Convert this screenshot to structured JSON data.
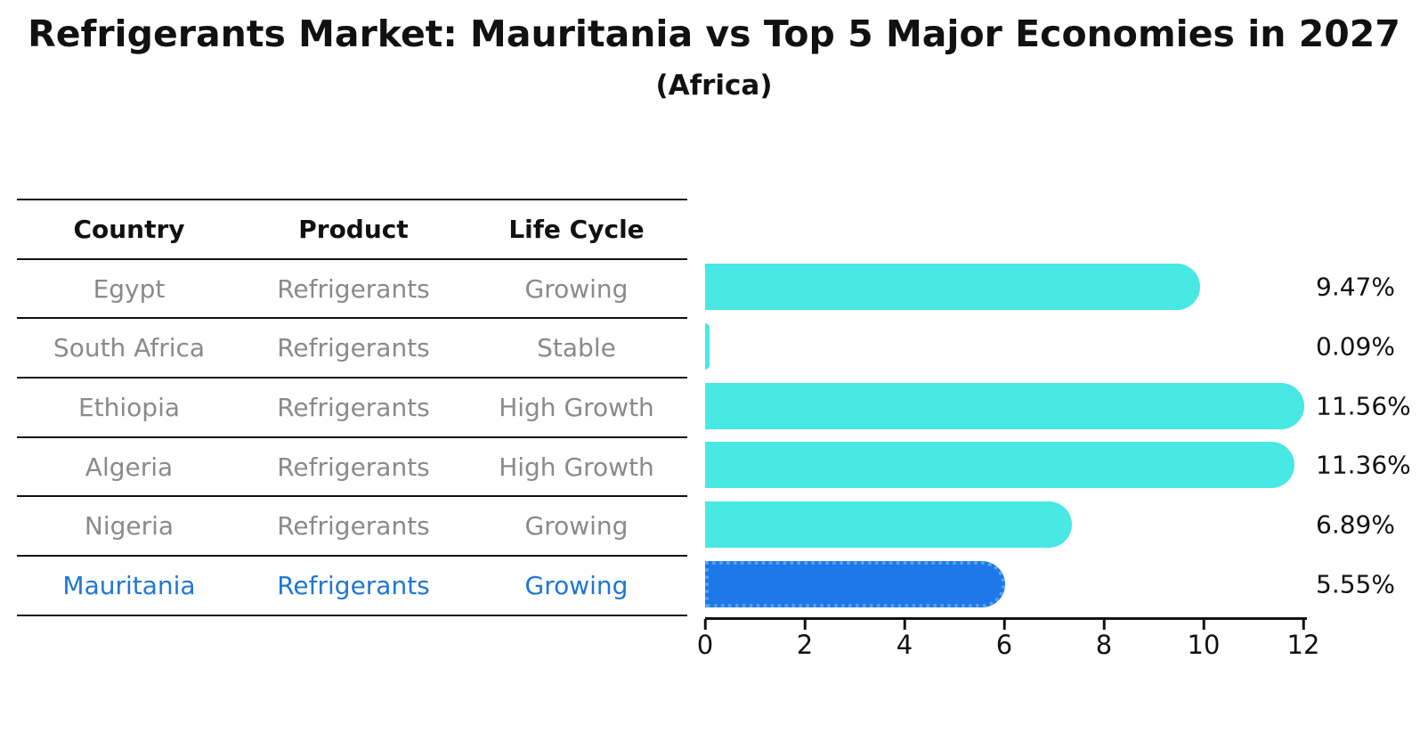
{
  "title": "Refrigerants Market: Mauritania vs Top 5 Major Economies in 2027",
  "subtitle": "(Africa)",
  "table": {
    "headers": [
      "Country",
      "Product",
      "Life Cycle"
    ],
    "rows": [
      {
        "country": "Egypt",
        "product": "Refrigerants",
        "life_cycle": "Growing",
        "highlight": false
      },
      {
        "country": "South Africa",
        "product": "Refrigerants",
        "life_cycle": "Stable",
        "highlight": false
      },
      {
        "country": "Ethiopia",
        "product": "Refrigerants",
        "life_cycle": "High Growth",
        "highlight": false
      },
      {
        "country": "Algeria",
        "product": "Refrigerants",
        "life_cycle": "High Growth",
        "highlight": false
      },
      {
        "country": "Nigeria",
        "product": "Refrigerants",
        "life_cycle": "Growing",
        "highlight": false
      },
      {
        "country": "Mauritania",
        "product": "Refrigerants",
        "life_cycle": "Growing",
        "highlight": true
      }
    ]
  },
  "chart_data": {
    "type": "bar",
    "orientation": "horizontal",
    "categories": [
      "Egypt",
      "South Africa",
      "Ethiopia",
      "Algeria",
      "Nigeria",
      "Mauritania"
    ],
    "values": [
      9.47,
      0.09,
      11.56,
      11.36,
      6.89,
      5.55
    ],
    "value_labels": [
      "9.47%",
      "0.09%",
      "11.56%",
      "11.36%",
      "6.89%",
      "5.55%"
    ],
    "highlight_index": 5,
    "x_ticks": [
      0,
      2,
      4,
      6,
      8,
      10,
      12
    ],
    "xlim": [
      0,
      12
    ],
    "grid": false,
    "legend": "none",
    "xlabel": "",
    "ylabel": ""
  },
  "colors": {
    "bar": "#48E8E4",
    "highlight_bar": "#1E78E8",
    "highlight_bar_border": "#55A4F2",
    "highlight_text": "#1F77D2",
    "row_text": "#8A8A8A",
    "axis": "#111111"
  }
}
